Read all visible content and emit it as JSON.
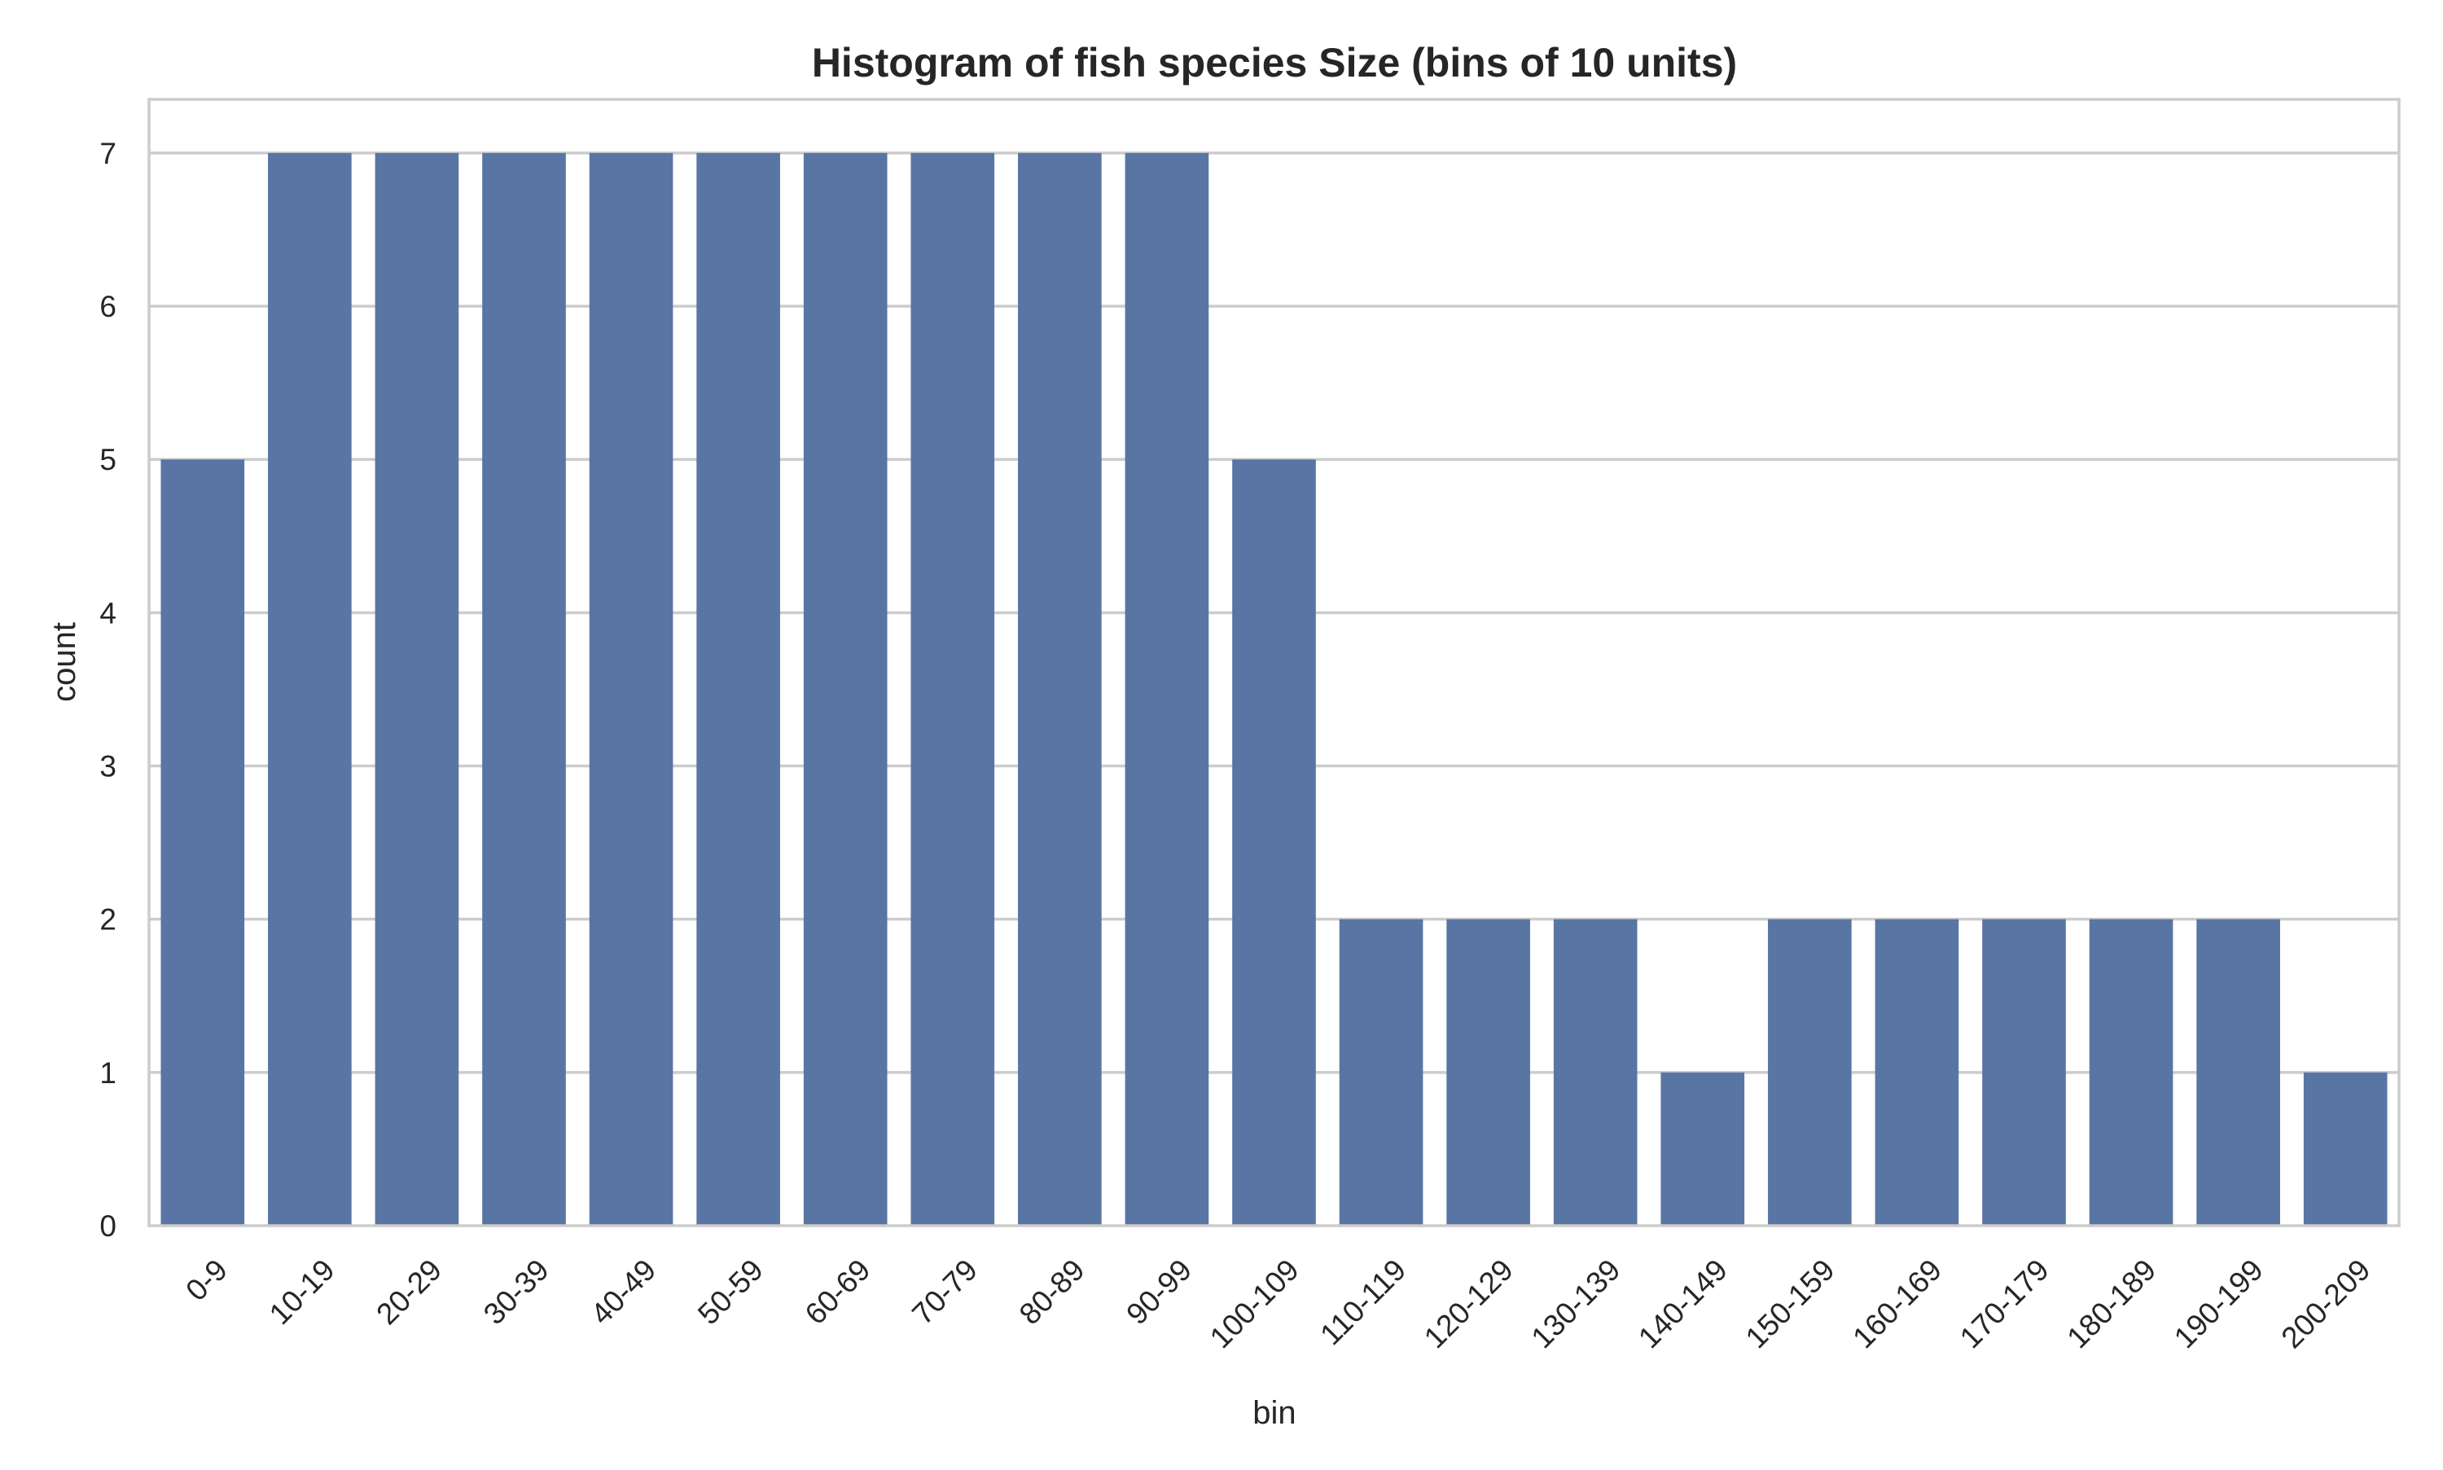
{
  "chart_data": {
    "type": "bar",
    "title": "Histogram of fish species Size (bins of 10 units)",
    "xlabel": "bin",
    "ylabel": "count",
    "categories": [
      "0-9",
      "10-19",
      "20-29",
      "30-39",
      "40-49",
      "50-59",
      "60-69",
      "70-79",
      "80-89",
      "90-99",
      "100-109",
      "110-119",
      "120-129",
      "130-139",
      "140-149",
      "150-159",
      "160-169",
      "170-179",
      "180-189",
      "190-199",
      "200-209"
    ],
    "values": [
      5,
      7,
      7,
      7,
      7,
      7,
      7,
      7,
      7,
      7,
      5,
      2,
      2,
      2,
      1,
      2,
      2,
      2,
      2,
      2,
      1
    ],
    "ylim": [
      0,
      7.35
    ],
    "yticks": [
      0,
      1,
      2,
      3,
      4,
      5,
      6,
      7
    ],
    "grid": true,
    "bar_color": "#5975a4",
    "grid_color": "#cccccc",
    "spine_color": "#cccccc"
  }
}
